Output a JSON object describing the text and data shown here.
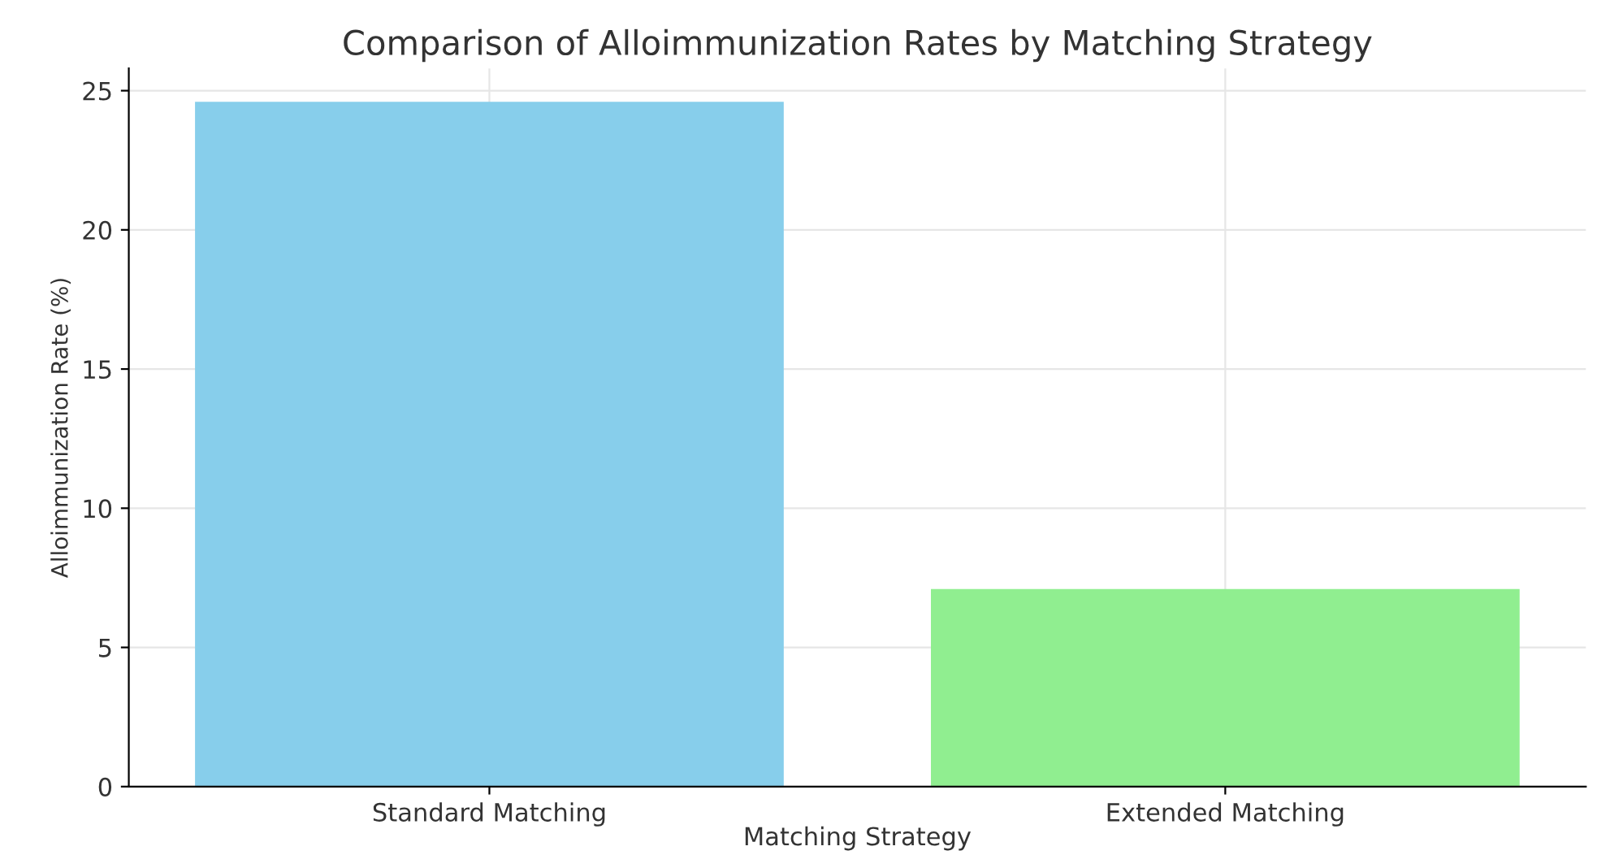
{
  "chart_data": {
    "type": "bar",
    "title": "Comparison of Alloimmunization Rates by Matching Strategy",
    "xlabel": "Matching Strategy",
    "ylabel": "Alloimmunization Rate (%)",
    "categories": [
      "Standard Matching",
      "Extended Matching"
    ],
    "values": [
      24.6,
      7.1
    ],
    "colors": [
      "#87ceeb",
      "#90ee90"
    ],
    "ylim": [
      0,
      25.8
    ],
    "yticks": [
      0,
      5,
      10,
      15,
      20,
      25
    ],
    "grid": true
  }
}
